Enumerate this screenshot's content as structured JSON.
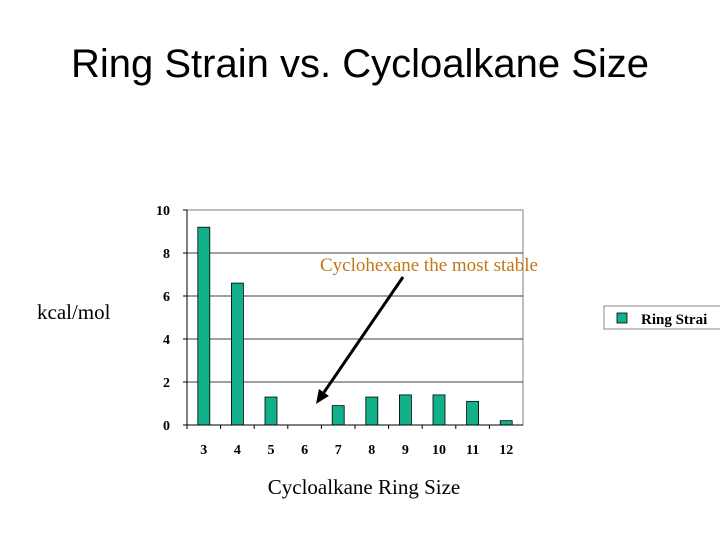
{
  "slide": {
    "title": "Ring Strain vs. Cycloalkane Size"
  },
  "chart_data": {
    "type": "bar",
    "categories": [
      "3",
      "4",
      "5",
      "6",
      "7",
      "8",
      "9",
      "10",
      "11",
      "12"
    ],
    "series": [
      {
        "name": "Ring Strai",
        "values": [
          9.2,
          6.6,
          1.3,
          0,
          0.9,
          1.3,
          1.4,
          1.4,
          1.1,
          0.2
        ],
        "color": "#12b08a"
      }
    ],
    "xlabel": "Cycloalkane Ring Size",
    "ylabel": "kcal/mol",
    "ylim": [
      0,
      10
    ],
    "yticks": [
      "0",
      "2",
      "4",
      "6",
      "8",
      "10"
    ],
    "grid": true,
    "legend_position": "right",
    "annotation": {
      "text": "Cyclohexane the most stable",
      "color": "#c07818",
      "points_to": "6"
    }
  }
}
